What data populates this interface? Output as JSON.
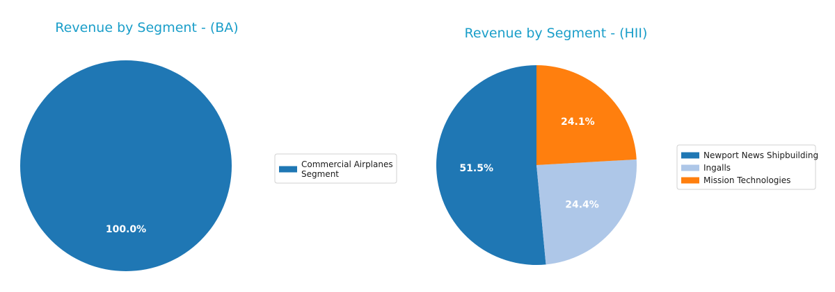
{
  "colors": {
    "title": "#1a9ec9",
    "blue": "#1f77b4",
    "light_blue": "#aec7e8",
    "orange": "#ff7f0e"
  },
  "chart_data": [
    {
      "type": "pie",
      "title": "Revenue by Segment - (BA)",
      "labels": [
        "Commercial Airplanes Segment"
      ],
      "legend_lines": [
        [
          "Commercial Airplanes",
          "Segment"
        ]
      ],
      "values": [
        100.0
      ],
      "value_labels": [
        "100.0%"
      ],
      "colors": [
        "#1f77b4"
      ],
      "legend": "right"
    },
    {
      "type": "pie",
      "title": "Revenue by Segment - (HII)",
      "labels": [
        "Newport News Shipbuilding",
        "Ingalls",
        "Mission Technologies"
      ],
      "legend_lines": [
        [
          "Newport News Shipbuilding"
        ],
        [
          "Ingalls"
        ],
        [
          "Mission Technologies"
        ]
      ],
      "values": [
        51.5,
        24.4,
        24.1
      ],
      "value_labels": [
        "51.5%",
        "24.4%",
        "24.1%"
      ],
      "colors": [
        "#1f77b4",
        "#aec7e8",
        "#ff7f0e"
      ],
      "legend": "right"
    }
  ]
}
